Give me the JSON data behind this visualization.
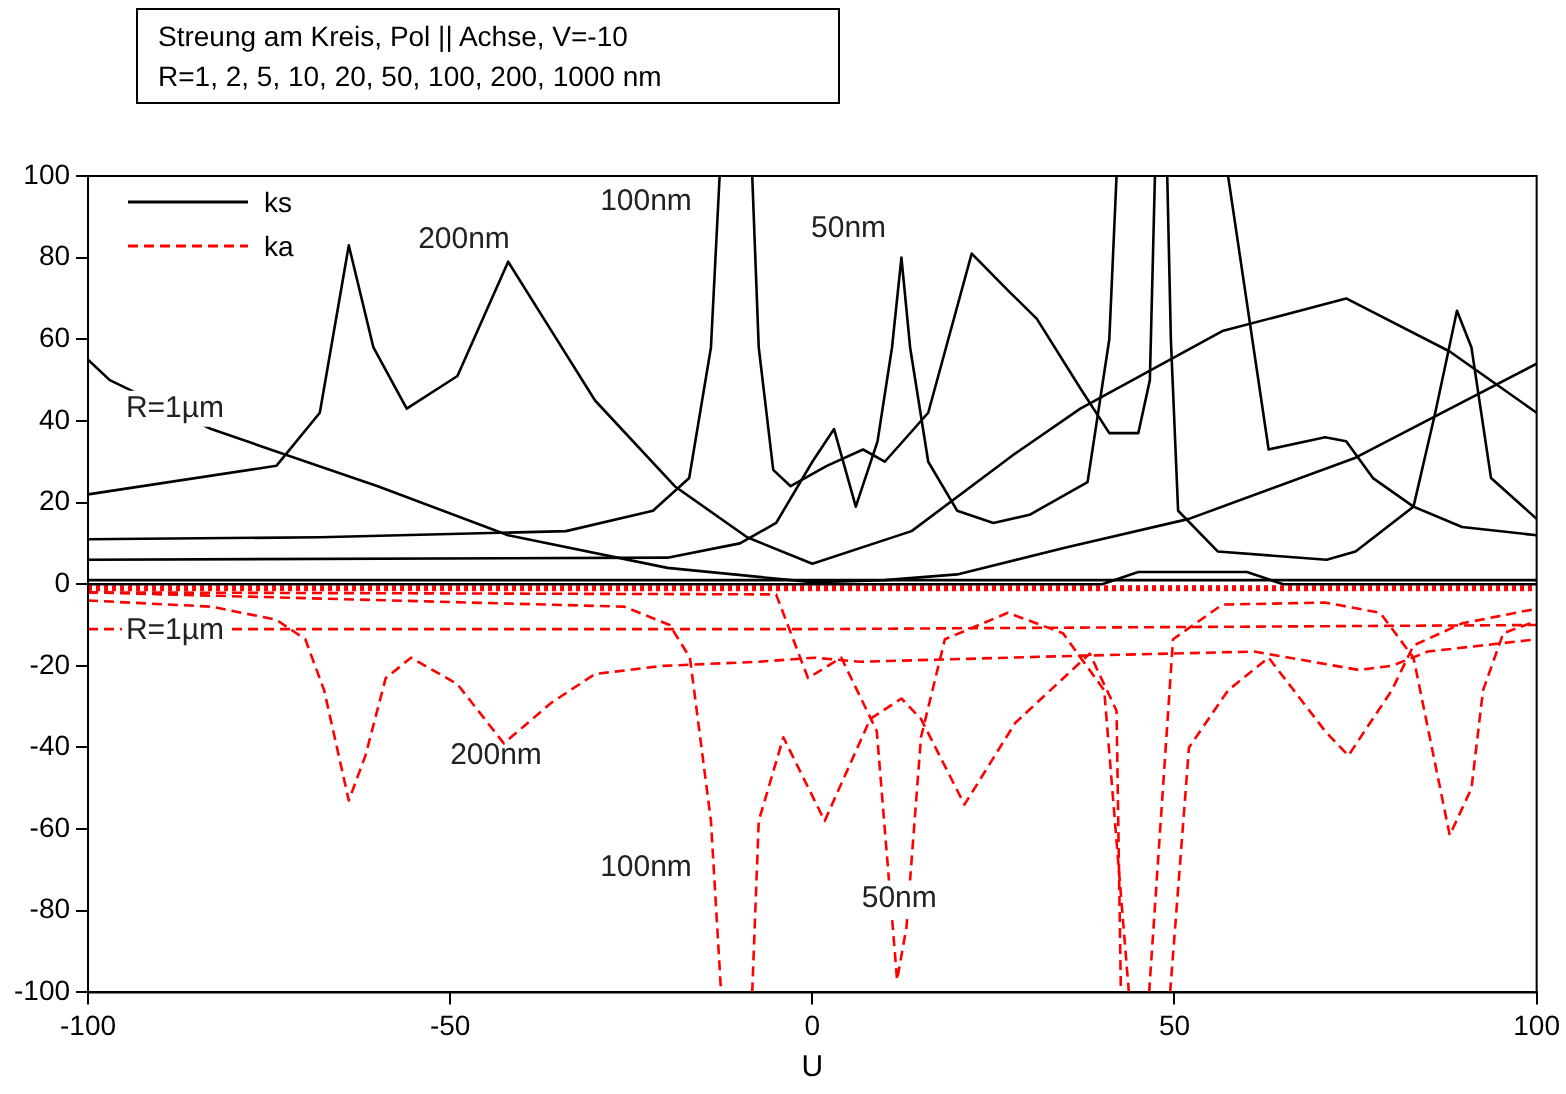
{
  "chart_data": {
    "type": "line",
    "title": "Streung am Kreis, Pol || Achse, V=-10",
    "subtitle": "R=1, 2, 5, 10, 20, 50, 100, 200, 1000 nm",
    "xlabel": "U",
    "xlim": [
      -100,
      100
    ],
    "xticks": [
      -100,
      -50,
      0,
      50,
      100
    ],
    "ylim": [
      -100,
      100
    ],
    "yticks": [
      -100,
      -80,
      -60,
      -40,
      -20,
      0,
      20,
      40,
      60,
      80,
      100
    ],
    "grid": false,
    "legend": "top left",
    "series": [
      {
        "name": "ks",
        "color": "#000000",
        "x": [
          -100,
          -74,
          -68,
          -64,
          -60.6,
          -56,
          -49,
          -42,
          -36,
          -30,
          -19,
          -9,
          0,
          13.7,
          28,
          37,
          56.6,
          73.7,
          88,
          100
        ],
        "values": [
          22,
          29,
          42,
          83,
          58,
          43,
          51,
          79,
          62,
          45,
          24,
          11.5,
          5,
          13,
          32,
          43,
          62,
          70,
          57,
          42
        ]
      },
      {
        "name": "ka",
        "color": "#ff0000",
        "line_style": "dashed",
        "x": [
          -100,
          -83,
          -74,
          -70,
          -67.4,
          -64,
          -61.7,
          -58.9,
          -55.4,
          -49,
          -42.6,
          -36,
          -30,
          -20.6,
          -7.4,
          0.3,
          6.6,
          37.4,
          61,
          75.4,
          80,
          85,
          100
        ],
        "values": [
          -4,
          -5.5,
          -8.7,
          -13.5,
          -26,
          -53,
          -42,
          -23,
          -18,
          -24.5,
          -39,
          -29,
          -22,
          -20,
          -19,
          -18,
          -19,
          -17.5,
          -16.5,
          -21,
          -20,
          -16.5,
          -13.5
        ]
      },
      {
        "color": "#000000",
        "x": [
          -100,
          -97,
          -83,
          -60,
          -42,
          -20,
          0,
          10,
          20,
          35,
          52,
          75,
          100
        ],
        "values": [
          55,
          50,
          38,
          24,
          12,
          4,
          0.5,
          1,
          2.4,
          9,
          16,
          31,
          54
        ]
      },
      {
        "color": "#000000",
        "x": [
          -100,
          -68,
          -34,
          -22,
          -17,
          -14,
          -12.8,
          -12,
          -8.6,
          -8.3,
          -7.4,
          -5.4,
          -3,
          2,
          7,
          10,
          16,
          22,
          27,
          31,
          37,
          41,
          45,
          46.6,
          47.3,
          48,
          57.2,
          57.4,
          63,
          70.8,
          73.7,
          77.4,
          83,
          89.7,
          100
        ],
        "values": [
          11,
          11.5,
          13,
          18,
          26,
          58,
          100,
          null,
          null,
          100,
          58,
          28,
          24,
          29,
          33,
          30,
          42,
          81,
          72,
          65,
          48,
          37,
          37,
          50,
          100,
          null,
          null,
          100,
          33,
          36,
          35,
          26,
          19,
          14,
          12
        ]
      },
      {
        "color": "#000000",
        "x": [
          -100,
          -20,
          -10,
          -5,
          0,
          3,
          6,
          9,
          11,
          12.3,
          13.5,
          16,
          20,
          25,
          30,
          38,
          41,
          42,
          48,
          49,
          49.5,
          50.5,
          56,
          71,
          75,
          83,
          86,
          89,
          91,
          93.7,
          100
        ],
        "values": [
          6,
          6.5,
          10,
          15,
          30,
          38,
          19,
          35,
          58,
          80,
          58,
          30,
          18,
          15,
          17,
          25,
          60,
          100,
          null,
          100,
          60,
          18,
          8,
          6,
          8,
          19,
          42,
          67,
          58,
          26,
          16
        ]
      },
      {
        "color": "#000000",
        "x": [
          -100,
          0,
          100
        ],
        "values": [
          1,
          1,
          1
        ]
      },
      {
        "color": "#000000",
        "x": [
          -100,
          40,
          45,
          60,
          65,
          100
        ],
        "values": [
          0,
          0,
          3,
          3,
          0,
          0
        ]
      },
      {
        "color": "#ff0000",
        "line_style": "dashed",
        "x": [
          -100,
          0,
          100
        ],
        "values": [
          -11,
          -11,
          -10
        ]
      },
      {
        "color": "#ff0000",
        "line_style": "dashed",
        "x": [
          -100,
          -26,
          -19.7,
          -16.9,
          -14,
          -12.6,
          null,
          -8.3,
          -7.4,
          -4,
          1.7,
          8,
          12.3,
          15,
          21,
          28,
          38.3,
          42,
          42.6,
          null,
          49.4,
          52,
          57.4,
          63,
          70.8,
          74,
          80,
          83,
          89.7,
          100
        ],
        "values": [
          -2,
          -5.5,
          -10,
          -18,
          -58,
          -100,
          null,
          -100,
          -58,
          -37.5,
          -58,
          -33,
          -28,
          -33,
          -54,
          -34,
          -17,
          -31,
          -100,
          null,
          -100,
          -40,
          -26,
          -18,
          -36,
          -42,
          -26,
          -15,
          -9.6,
          -6
        ]
      },
      {
        "color": "#ff0000",
        "line_style": "dashed",
        "x": [
          -100,
          -5,
          -0.6,
          4,
          8.9,
          11.7,
          13,
          15,
          18.3,
          27,
          34.6,
          40.3,
          43.7,
          null,
          46.5,
          49.8,
          56.6,
          70.8,
          78.4,
          83,
          88,
          91,
          92.6,
          95.4,
          100
        ],
        "values": [
          -2,
          -2.5,
          -23,
          -18,
          -36,
          -97,
          -84,
          -37.5,
          -13.5,
          -7,
          -12,
          -26,
          -100,
          null,
          -100,
          -13.5,
          -5,
          -4.5,
          -7,
          -18,
          -61.5,
          -50,
          -26,
          -12,
          -9
        ]
      },
      {
        "color": "#ff0000",
        "line_style": "dotted",
        "x": [
          -100,
          0,
          100
        ],
        "values": [
          -1,
          -1,
          -1
        ]
      }
    ],
    "annotations": [
      "200nm",
      "100nm",
      {
        "text": "50nm",
        "x": 5,
        "y": 87
      },
      {
        "text": "R=1µm",
        "x": -88,
        "y": 43
      },
      {
        "text": "R=1µm",
        "x": -88,
        "y": -11.5
      },
      "200nm",
      "100nm",
      {
        "text": "50nm",
        "x": 12,
        "y": -77
      }
    ]
  }
}
